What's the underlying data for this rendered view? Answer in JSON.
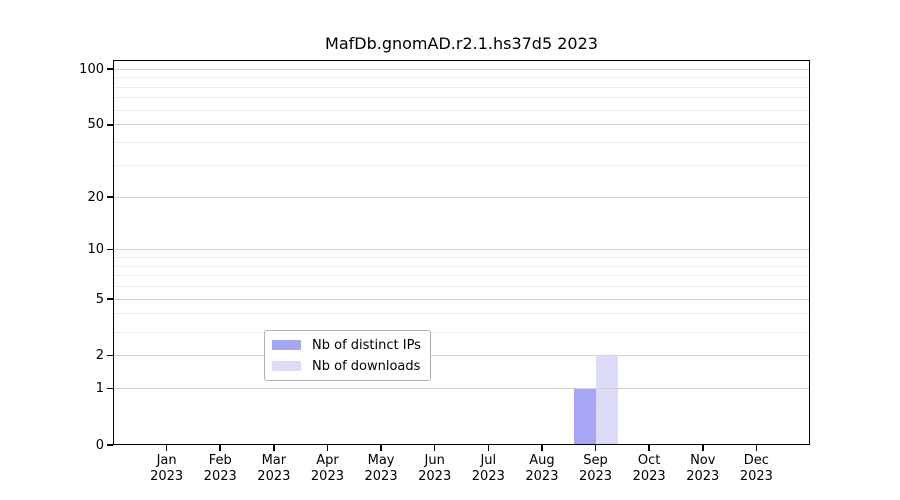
{
  "chart_data": {
    "type": "bar",
    "title": "MafDb.gnomAD.r2.1.hs37d5 2023",
    "x_axis": {
      "categories": [
        "Jan",
        "Feb",
        "Mar",
        "Apr",
        "May",
        "Jun",
        "Jul",
        "Aug",
        "Sep",
        "Oct",
        "Nov",
        "Dec"
      ],
      "year_label": "2023"
    },
    "y_axis": {
      "scale": "log1p",
      "tick_values": [
        0,
        1,
        2,
        5,
        10,
        20,
        50,
        100
      ],
      "minor_gridline_values": [
        3,
        4,
        6,
        7,
        8,
        9,
        30,
        40,
        60,
        70,
        80,
        90
      ],
      "range": [
        0,
        112
      ]
    },
    "series": [
      {
        "name": "Nb of distinct IPs",
        "color": "#a6a6f4",
        "values": [
          0,
          0,
          0,
          0,
          0,
          0,
          0,
          0,
          1,
          0,
          0,
          0
        ]
      },
      {
        "name": "Nb of downloads",
        "color": "#dcdcf9",
        "values": [
          0,
          0,
          0,
          0,
          0,
          0,
          0,
          0,
          2,
          0,
          0,
          0
        ]
      }
    ],
    "legend": {
      "position": "bottom-center",
      "entries": [
        "Nb of distinct IPs",
        "Nb of downloads"
      ]
    },
    "colors": {
      "background": "#ffffff",
      "spine": "#000000",
      "major_gridline": "#d2d2d2",
      "minor_gridline": "#ececec",
      "text": "#000000"
    }
  }
}
